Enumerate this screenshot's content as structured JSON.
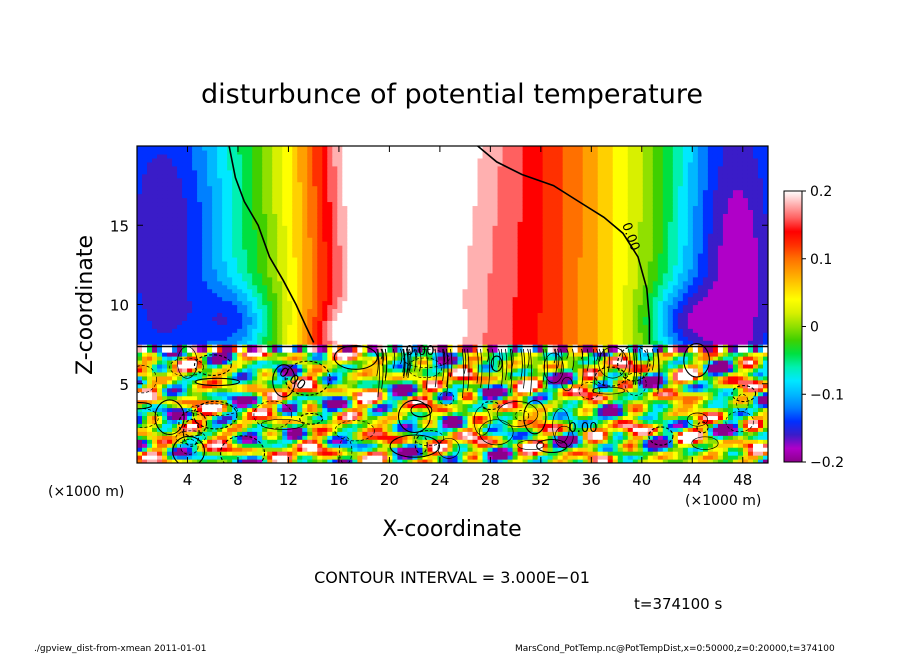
{
  "chart_data": {
    "type": "heatmap",
    "title": "disturbunce of potential temperature",
    "xlabel": "X-coordinate",
    "ylabel": "Z-coordinate",
    "x_units_left": "(×1000 m)",
    "x_units_right": "(×1000 m)",
    "xlim": [
      0,
      50
    ],
    "ylim": [
      0,
      20
    ],
    "x_ticks": [
      4,
      8,
      12,
      16,
      20,
      24,
      28,
      32,
      36,
      40,
      44,
      48
    ],
    "y_ticks": [
      5,
      10,
      15
    ],
    "colorbar": {
      "min": -0.2,
      "max": 0.2,
      "ticks": [
        0.2,
        0.1,
        0,
        -0.1,
        -0.2
      ],
      "tick_labels": [
        "0.2",
        "0.1",
        "0",
        "−0.1",
        "−0.2"
      ],
      "colors": [
        "#8b008b",
        "#b000c8",
        "#3a1cc8",
        "#0030ff",
        "#0080ff",
        "#00b8ff",
        "#00e8ff",
        "#00f0b0",
        "#00e040",
        "#40d000",
        "#90e000",
        "#d8f000",
        "#ffff00",
        "#ffd000",
        "#ffa000",
        "#ff7000",
        "#ff3000",
        "#ff0000",
        "#ff6060",
        "#ffb0b0",
        "#ffffff"
      ]
    },
    "contour_labels": [
      "0.00",
      "0.00",
      "0.00",
      "0.00"
    ],
    "contour_interval_text": "CONTOUR INTERVAL = 3.000E−01",
    "time_text": "t=374100 s"
  },
  "footer": {
    "left": "./gpview_dist-from-xmean  2011-01-01",
    "right": "MarsCond_PotTemp.nc@PotTempDist,x=0:50000,z=0:20000,t=374100"
  }
}
